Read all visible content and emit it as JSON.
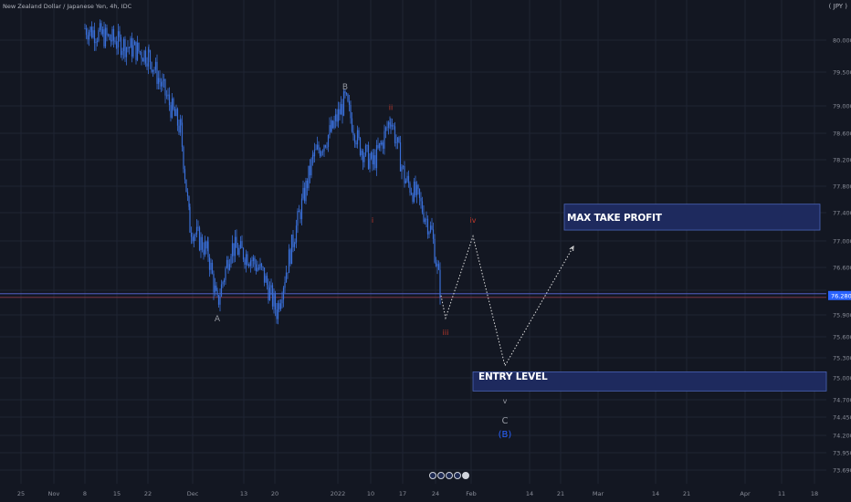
{
  "app": {
    "symbol_title": "New Zealand Dollar / Japanese Yen, 4h, IDC",
    "currency_button": "( JPY )"
  },
  "colors": {
    "background": "#131722",
    "candle": "#3a6fd8",
    "box_fill": "#1e2a5e",
    "box_border": "#4a64b8",
    "wave_red": "#c0392b",
    "wave_blue": "#2962ff",
    "wave_grey": "#9598a1",
    "price_line": "#5b6be0"
  },
  "chart_data": {
    "type": "candlestick",
    "title": "New Zealand Dollar / Japanese Yen, 4h, IDC",
    "x_ticks": [
      "25",
      "Nov",
      "8",
      "15",
      "22",
      "Dec",
      "13",
      "20",
      "2022",
      "10",
      "17",
      "24",
      "Feb",
      "14",
      "21",
      "Mar",
      "14",
      "21",
      "Apr",
      "11",
      "18"
    ],
    "y_ticks": [
      "80.000",
      "79.500",
      "79.000",
      "78.600",
      "78.200",
      "77.800",
      "77.400",
      "77.000",
      "76.600",
      "76.280",
      "75.900",
      "75.600",
      "75.300",
      "75.000",
      "74.700",
      "74.450",
      "74.200",
      "73.950",
      "73.690"
    ],
    "ylim": [
      73.6,
      80.4
    ],
    "last_price": "76.280",
    "price_path": [
      [
        "Nov 8",
        80.2
      ],
      [
        "Nov 15",
        80.0
      ],
      [
        "Nov 22",
        79.8
      ],
      [
        "Nov 29",
        78.7
      ],
      [
        "Dec 1",
        77.3
      ],
      [
        "Dec 5",
        76.9
      ],
      [
        "Dec 7",
        76.15
      ],
      [
        "Dec 10",
        77.0
      ],
      [
        "Dec 14",
        76.85
      ],
      [
        "Dec 17",
        76.6
      ],
      [
        "Dec 20",
        76.05
      ],
      [
        "Dec 24",
        77.2
      ],
      [
        "Dec 28",
        78.3
      ],
      [
        "Jan 1",
        78.7
      ],
      [
        "Jan 4",
        79.15
      ],
      [
        "Jan 7",
        78.5
      ],
      [
        "Jan 10",
        78.2
      ],
      [
        "Jan 12",
        78.5
      ],
      [
        "Jan 14",
        78.9
      ],
      [
        "Jan 17",
        78.0
      ],
      [
        "Jan 20",
        77.7
      ],
      [
        "Jan 23",
        77.2
      ],
      [
        "Jan 25",
        76.3
      ]
    ],
    "projection": [
      [
        "Jan 26",
        75.95
      ],
      [
        "Feb 1",
        77.15
      ],
      [
        "Feb 8",
        75.25
      ],
      [
        "Feb 23",
        77.0
      ]
    ],
    "zones": [
      {
        "label": "MAX TAKE PROFIT",
        "from_date": "Feb 21",
        "to_date": "Apr 18",
        "y_low": 77.24,
        "y_high": 77.62
      },
      {
        "label": "ENTRY LEVEL",
        "from_date": "Feb 1",
        "to_date": "Apr 25",
        "y_low": 74.88,
        "y_high": 75.16
      }
    ],
    "wave_labels": [
      {
        "text": "A",
        "date": "Dec 7",
        "price": 75.9,
        "color": "grey"
      },
      {
        "text": "B",
        "date": "Jan 4",
        "price": 79.3,
        "color": "grey"
      },
      {
        "text": "ii",
        "date": "Jan 14",
        "price": 79.0,
        "color": "red"
      },
      {
        "text": "i",
        "date": "Jan 10",
        "price": 77.35,
        "color": "red"
      },
      {
        "text": "iv",
        "date": "Feb 1",
        "price": 77.35,
        "color": "red"
      },
      {
        "text": "iii",
        "date": "Jan 26",
        "price": 75.7,
        "color": "red"
      },
      {
        "text": "v",
        "date": "Feb 8",
        "price": 74.7,
        "color": "grey"
      },
      {
        "text": "C",
        "date": "Feb 8",
        "price": 74.4,
        "color": "grey"
      },
      {
        "text": "(B)",
        "date": "Feb 8",
        "price": 74.2,
        "color": "blue"
      }
    ],
    "legend": "none",
    "grid": true
  }
}
